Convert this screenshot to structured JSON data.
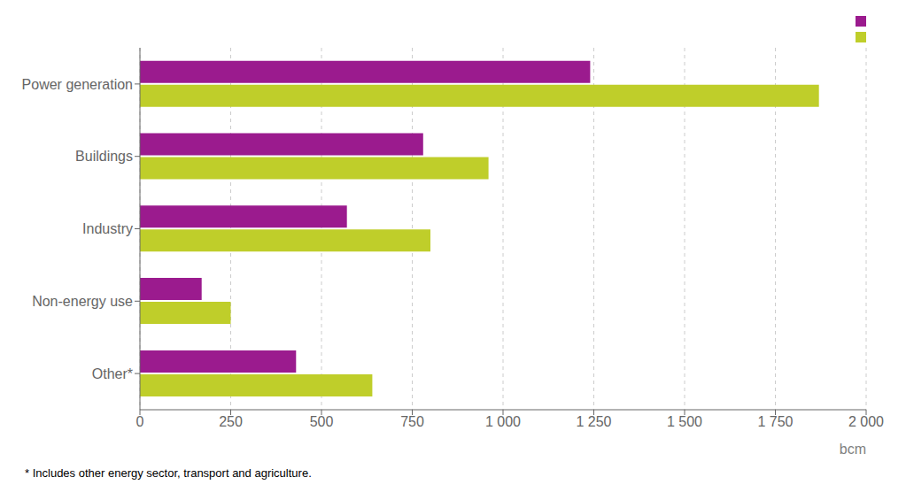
{
  "chart_data": {
    "type": "bar",
    "orientation": "horizontal",
    "categories": [
      "Power generation",
      "Buildings",
      "Industry",
      "Non-energy use",
      "Other*"
    ],
    "series": [
      {
        "color": "#9B1B8E",
        "values": [
          1240,
          780,
          570,
          170,
          430
        ]
      },
      {
        "color": "#BFCE2A",
        "values": [
          1870,
          960,
          800,
          250,
          640
        ]
      }
    ],
    "xlabel": "bcm",
    "xlim": [
      0,
      2000
    ],
    "xticks": [
      0,
      250,
      500,
      750,
      {
        "value": 1000,
        "label": "1 000"
      },
      {
        "value": 1250,
        "label": "1 250"
      },
      {
        "value": 1500,
        "label": "1 500"
      },
      {
        "value": 1750,
        "label": "1 750"
      },
      {
        "value": 2000,
        "label": "2 000"
      }
    ],
    "grid": true,
    "legend": "upper right",
    "footnote": "* Includes other energy sector, transport and agriculture."
  }
}
